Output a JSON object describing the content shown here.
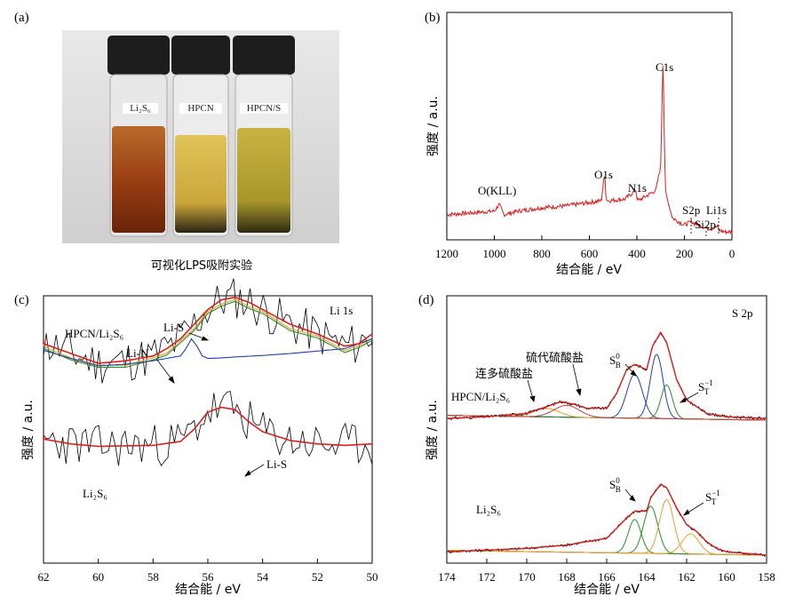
{
  "panels": {
    "a": {
      "label": "(a)",
      "caption": "可视化LPS吸附实验",
      "vials": [
        "Li₂S₆",
        "HPCN",
        "HPCN/S"
      ]
    },
    "b": {
      "label": "(b)",
      "xlabel": "结合能 / eV",
      "ylabel": "强度 / a.u.",
      "peaks": [
        "O(KLL)",
        "O1s",
        "N1s",
        "C1s",
        "S2p",
        "Li1s",
        "Si2p"
      ]
    },
    "c": {
      "label": "(c)",
      "title": "Li 1s",
      "xlabel": "结合能 / eV",
      "ylabel": "强度 / a.u.",
      "annotations": [
        "HPCN/Li₂S₆",
        "Li-S",
        "Li-N",
        "Li₂S₆",
        "Li-S"
      ]
    },
    "d": {
      "label": "(d)",
      "title": "S 2p",
      "xlabel": "结合能 / eV",
      "ylabel": "强度 / a.u.",
      "annotations": [
        "硫代硫酸盐",
        "连多硫酸盐",
        "HPCN/Li₂S₆",
        "S",
        "0",
        "B",
        "S",
        "−1",
        "T",
        "Li₂S₆",
        "S",
        "0",
        "B",
        "S",
        "−1",
        "T"
      ]
    }
  },
  "chart_data": [
    {
      "type": "line",
      "panel": "b",
      "xlabel": "结合能 / eV",
      "ylabel": "强度 / a.u.",
      "xlim": [
        1200,
        0
      ],
      "xticks": [
        1200,
        1000,
        800,
        600,
        400,
        200,
        0
      ],
      "series": [
        {
          "x": [
            1200,
            1100,
            1000,
            980,
            960,
            900,
            800,
            700,
            600,
            550,
            535,
            530,
            520,
            450,
            405,
            400,
            395,
            320,
            300,
            290,
            285,
            280,
            250,
            200,
            170,
            160,
            100,
            60,
            55,
            30,
            0
          ],
          "y": [
            1.2,
            1.3,
            1.4,
            1.8,
            1.2,
            1.4,
            1.6,
            1.7,
            1.9,
            2.0,
            3.6,
            2.1,
            2.0,
            2.1,
            2.6,
            2.2,
            2.0,
            2.6,
            4.0,
            10.5,
            6.0,
            2.5,
            1.0,
            0.6,
            0.8,
            0.7,
            0.4,
            0.5,
            0.3,
            0.2,
            0.2
          ],
          "color": "#d62020"
        }
      ]
    },
    {
      "type": "line",
      "panel": "c",
      "xlabel": "结合能 / eV",
      "ylabel": "强度 / a.u.",
      "xlim": [
        62,
        50
      ],
      "xticks": [
        62,
        60,
        58,
        56,
        54,
        52,
        50
      ],
      "series": [
        {
          "x": [
            62.5,
            61,
            60,
            59,
            58,
            57.5,
            57,
            56.5,
            56,
            55.5,
            55,
            54.5,
            54,
            53,
            52,
            51,
            50.5,
            50
          ],
          "y": [
            4.7,
            4.4,
            4.2,
            4.25,
            4.35,
            4.5,
            4.7,
            5.0,
            5.3,
            5.5,
            5.55,
            5.45,
            5.3,
            5.0,
            4.8,
            4.55,
            4.6,
            4.8
          ],
          "color": "#d62020"
        },
        {
          "x": [
            62.5,
            61,
            60,
            59,
            58,
            57,
            56.8,
            56.6,
            56.4,
            56.2,
            56,
            55.5,
            55,
            54,
            53,
            52,
            51,
            50.5,
            50
          ],
          "y": [
            4.55,
            4.3,
            4.15,
            4.18,
            4.25,
            4.35,
            4.5,
            4.7,
            4.55,
            4.35,
            4.3,
            4.31,
            4.33,
            4.36,
            4.4,
            4.45,
            4.5,
            4.6,
            4.7
          ],
          "color": "#2040a0"
        },
        {
          "x": [
            62.5,
            61,
            60,
            58,
            57,
            56.5,
            56,
            55.5,
            55,
            54.5,
            54,
            53,
            52,
            51,
            50,
            49
          ],
          "y": [
            2.7,
            2.55,
            2.5,
            2.52,
            2.6,
            2.85,
            3.2,
            3.3,
            3.25,
            3.0,
            2.8,
            2.62,
            2.55,
            2.52,
            2.55,
            2.6
          ],
          "color": "#d62020"
        }
      ]
    },
    {
      "type": "line",
      "panel": "d",
      "xlabel": "结合能 / eV",
      "ylabel": "强度 / a.u.",
      "xlim": [
        174,
        158
      ],
      "xticks": [
        174,
        172,
        170,
        168,
        166,
        164,
        162,
        160,
        158
      ],
      "series": [
        {
          "x": [
            174,
            172,
            170,
            169,
            168.3,
            167.5,
            167,
            166,
            165.5,
            165,
            164.6,
            164,
            163.7,
            163.3,
            163,
            162.5,
            162,
            161,
            160,
            158
          ],
          "y": [
            0.05,
            0.1,
            0.2,
            0.4,
            0.55,
            0.45,
            0.35,
            0.35,
            0.8,
            1.5,
            1.65,
            1.5,
            2.2,
            2.6,
            2.3,
            1.2,
            0.6,
            0.2,
            0.1,
            0.05
          ],
          "color": "#d62020",
          "offset": 4
        },
        {
          "x": [
            174,
            172,
            170,
            168,
            166,
            165,
            164.6,
            164,
            163.8,
            163.3,
            163,
            162.5,
            162,
            161.5,
            161,
            160.5,
            160,
            159,
            158
          ],
          "y": [
            0.1,
            0.15,
            0.2,
            0.3,
            0.5,
            1.1,
            1.3,
            1.3,
            1.7,
            2.1,
            2.0,
            1.4,
            0.9,
            0.7,
            0.4,
            0.2,
            0.1,
            0.05,
            0.0
          ],
          "color": "#d62020",
          "offset": 0
        }
      ]
    }
  ]
}
